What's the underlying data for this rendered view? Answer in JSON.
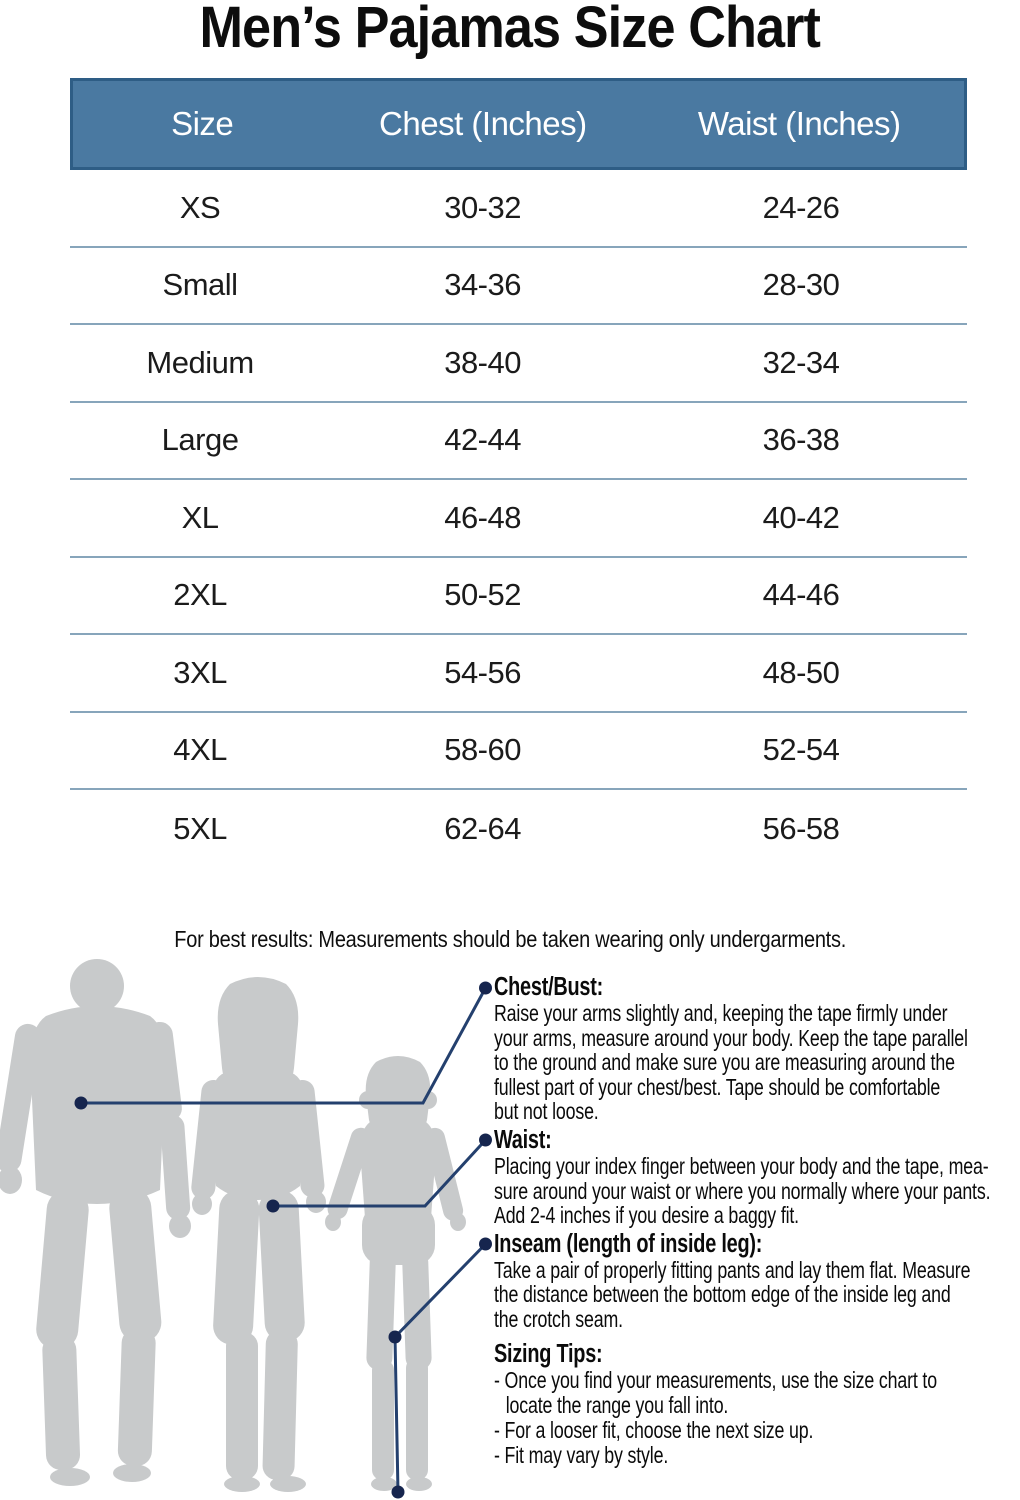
{
  "title": "Men’s Pajamas Size Chart",
  "note": "For best results: Measurements should be taken wearing only undergarments.",
  "table": {
    "headers": [
      "Size",
      "Chest (Inches)",
      "Waist (Inches)"
    ],
    "rows": [
      [
        "XS",
        "30-32",
        "24-26"
      ],
      [
        "Small",
        "34-36",
        "28-30"
      ],
      [
        "Medium",
        "38-40",
        "32-34"
      ],
      [
        "Large",
        "42-44",
        "36-38"
      ],
      [
        "XL",
        "46-48",
        "40-42"
      ],
      [
        "2XL",
        "50-52",
        "44-46"
      ],
      [
        "3XL",
        "54-56",
        "48-50"
      ],
      [
        "4XL",
        "58-60",
        "52-54"
      ],
      [
        "5XL",
        "62-64",
        "56-58"
      ]
    ]
  },
  "sections": [
    {
      "heading": "Chest/Bust:",
      "lines": [
        "Raise your arms slightly and, keeping the tape firmly under",
        "your arms, measure around your body. Keep the tape parallel",
        "to the ground and make sure you are measuring around the",
        "fullest part of your chest/best. Tape should be comfortable",
        "but not loose."
      ]
    },
    {
      "heading": "Waist:",
      "lines": [
        "Placing your index finger between your body and the tape, mea-",
        "sure around your waist or where you normally where your pants.",
        "Add 2-4 inches if you desire a baggy fit."
      ]
    },
    {
      "heading": "Inseam (length of inside leg):",
      "lines": [
        "Take a pair of properly fitting pants and lay them flat. Measure",
        "the distance between the bottom edge of the inside leg and",
        "the crotch seam."
      ]
    },
    {
      "heading": "Sizing Tips:",
      "extra_gap": true,
      "tips": [
        {
          "text": "- Once you find your measurements, use the size chart to",
          "indent": false
        },
        {
          "text": "locate the range you fall into.",
          "indent": true
        },
        {
          "text": "- For a looser fit, choose the next size up.",
          "indent": false
        },
        {
          "text": "- Fit may vary by style.",
          "indent": false
        }
      ]
    }
  ],
  "figures": [
    "man-silhouette",
    "woman-silhouette",
    "girl-silhouette"
  ],
  "colors": {
    "header_bg": "#4a79a1",
    "header_border": "#2e5d85",
    "header_text": "#ffffff",
    "row_divider": "#87a5bb",
    "silhouette_gray": "#c8cacb",
    "connector_navy": "#24406e",
    "dot_navy": "#16254e",
    "text_black": "#0d0d0d"
  }
}
